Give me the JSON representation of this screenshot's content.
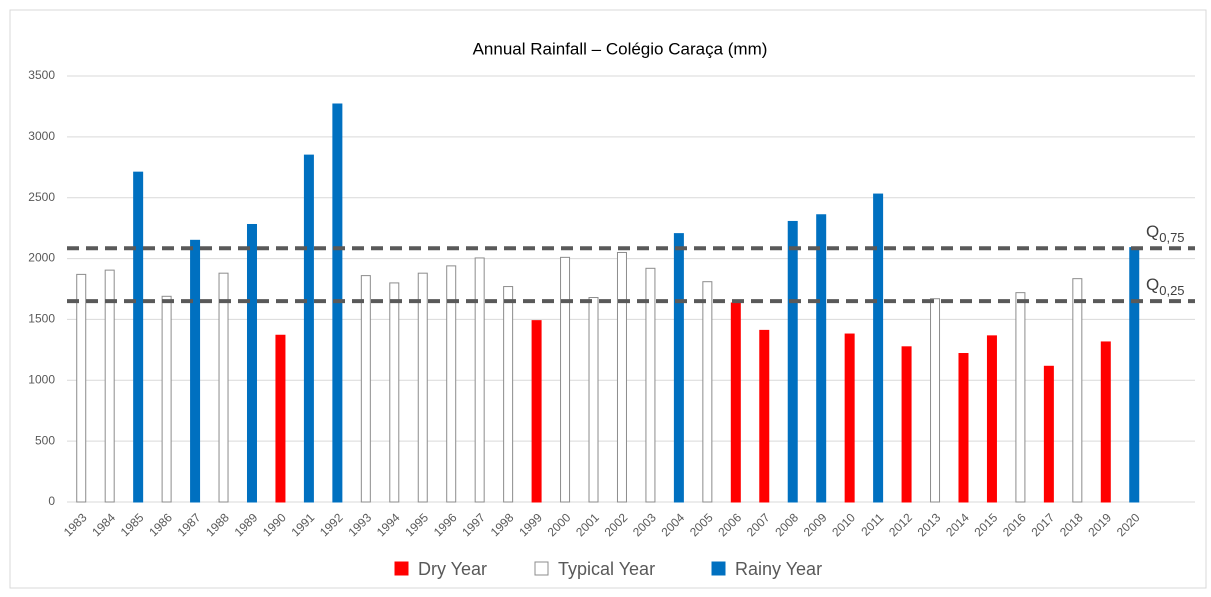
{
  "chart_data": {
    "type": "bar",
    "title": "Annual Rainfall – Colégio Caraça (mm)",
    "categories": [
      "1983",
      "1984",
      "1985",
      "1986",
      "1987",
      "1988",
      "1989",
      "1990",
      "1991",
      "1992",
      "1993",
      "1994",
      "1995",
      "1996",
      "1997",
      "1998",
      "1999",
      "2000",
      "2001",
      "2002",
      "2003",
      "2004",
      "2005",
      "2006",
      "2007",
      "2008",
      "2009",
      "2010",
      "2011",
      "2012",
      "2013",
      "2014",
      "2015",
      "2016",
      "2017",
      "2018",
      "2019",
      "2020"
    ],
    "series": [
      {
        "name": "Dry Year",
        "color": "#ff0000",
        "edgecolor": "#ff0000",
        "values": [
          null,
          null,
          null,
          null,
          null,
          null,
          null,
          1370,
          null,
          null,
          null,
          null,
          null,
          null,
          null,
          null,
          1490,
          null,
          null,
          null,
          null,
          null,
          null,
          1635,
          1410,
          null,
          null,
          1380,
          null,
          1275,
          null,
          1220,
          1365,
          null,
          1115,
          null,
          1315,
          null
        ]
      },
      {
        "name": "Typical Year",
        "color": "#ffffff",
        "edgecolor": "#8c8c8c",
        "values": [
          1870,
          1905,
          null,
          1690,
          null,
          1880,
          null,
          null,
          null,
          null,
          1860,
          1800,
          1880,
          1940,
          2005,
          1770,
          null,
          2010,
          1680,
          2050,
          1920,
          null,
          1810,
          null,
          null,
          null,
          null,
          null,
          null,
          null,
          1670,
          null,
          null,
          1720,
          null,
          1835,
          null,
          null
        ]
      },
      {
        "name": "Rainy Year",
        "color": "#0070c0",
        "edgecolor": "#0070c0",
        "values": [
          null,
          null,
          2710,
          null,
          2150,
          null,
          2280,
          null,
          2850,
          3270,
          null,
          null,
          null,
          null,
          null,
          null,
          null,
          null,
          null,
          null,
          null,
          2205,
          null,
          null,
          null,
          2305,
          2360,
          null,
          2530,
          null,
          null,
          null,
          null,
          null,
          null,
          null,
          null,
          2090
        ]
      }
    ],
    "ylim": [
      0,
      3500
    ],
    "yticks": [
      0,
      500,
      1000,
      1500,
      2000,
      2500,
      3000,
      3500
    ],
    "grid": true,
    "legend": "bottom",
    "reference_lines": [
      {
        "label": "Q",
        "subscript": "0,75",
        "value": 2085,
        "color": "#595959"
      },
      {
        "label": "Q",
        "subscript": "0,25",
        "value": 1650,
        "color": "#595959"
      }
    ]
  }
}
